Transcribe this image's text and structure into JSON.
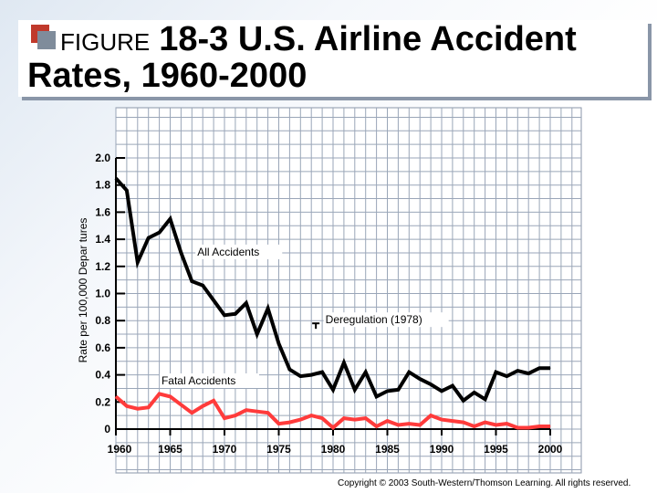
{
  "title": {
    "prefix": "FIGURE",
    "main": "18-3 U.S. Airline Accident",
    "line2": "Rates, 1960-2000"
  },
  "copyright": "Copyright © 2003 South-Western/Thomson Learning. All rights reserved.",
  "chart_data": {
    "type": "line",
    "ylabel": "Rate per 100,000 Depar tures",
    "ylim": [
      0,
      2.0
    ],
    "xlim": [
      1960,
      2000
    ],
    "yticks": [
      2.0,
      1.8,
      1.6,
      1.4,
      1.2,
      1.0,
      0.8,
      0.6,
      0.4,
      0.2,
      0
    ],
    "ytick_labels": [
      "2.0",
      "1.8",
      "1.6",
      "1.4",
      "1.2",
      "1.0",
      "0.8",
      "0.6",
      "0.4",
      "0.2",
      "0"
    ],
    "xticks": [
      1960,
      1965,
      1970,
      1975,
      1980,
      1985,
      1990,
      1995,
      2000
    ],
    "xtick_labels": [
      "1960",
      "1965",
      "1970",
      "1975",
      "1980",
      "1985",
      "1990",
      "1995",
      "2000"
    ],
    "grid": true,
    "x": [
      1960,
      1961,
      1962,
      1963,
      1964,
      1965,
      1966,
      1967,
      1968,
      1969,
      1970,
      1971,
      1972,
      1973,
      1974,
      1975,
      1976,
      1977,
      1978,
      1979,
      1980,
      1981,
      1982,
      1983,
      1984,
      1985,
      1986,
      1987,
      1988,
      1989,
      1990,
      1991,
      1992,
      1993,
      1994,
      1995,
      1996,
      1997,
      1998,
      1999,
      2000
    ],
    "series": [
      {
        "name": "All Accidents",
        "color": "#000000",
        "values": [
          1.85,
          1.76,
          1.23,
          1.41,
          1.45,
          1.55,
          1.3,
          1.09,
          1.06,
          0.95,
          0.84,
          0.85,
          0.93,
          0.7,
          0.89,
          0.63,
          0.44,
          0.39,
          0.4,
          0.42,
          0.29,
          0.49,
          0.29,
          0.42,
          0.24,
          0.28,
          0.29,
          0.42,
          0.37,
          0.33,
          0.28,
          0.32,
          0.21,
          0.27,
          0.22,
          0.42,
          0.39,
          0.43,
          0.41,
          0.45,
          0.45
        ]
      },
      {
        "name": "Fatal Accidents",
        "color": "#ff3b3b",
        "values": [
          0.24,
          0.17,
          0.15,
          0.16,
          0.26,
          0.24,
          0.18,
          0.12,
          0.17,
          0.21,
          0.08,
          0.1,
          0.14,
          0.13,
          0.12,
          0.04,
          0.05,
          0.07,
          0.1,
          0.08,
          0.01,
          0.08,
          0.07,
          0.08,
          0.02,
          0.06,
          0.03,
          0.04,
          0.03,
          0.1,
          0.07,
          0.06,
          0.05,
          0.02,
          0.05,
          0.03,
          0.04,
          0.01,
          0.01,
          0.02,
          0.02
        ]
      }
    ],
    "annotations": [
      {
        "text": "All Accidents",
        "x": 1967.5,
        "y": 1.28
      },
      {
        "text": "Deregulation (1978)",
        "x": 1979.3,
        "y": 0.78
      },
      {
        "text": "Fatal Accidents",
        "x": 1964.2,
        "y": 0.33
      }
    ],
    "deregulation_marker": {
      "x": 1978.5,
      "y": 0.78
    }
  }
}
